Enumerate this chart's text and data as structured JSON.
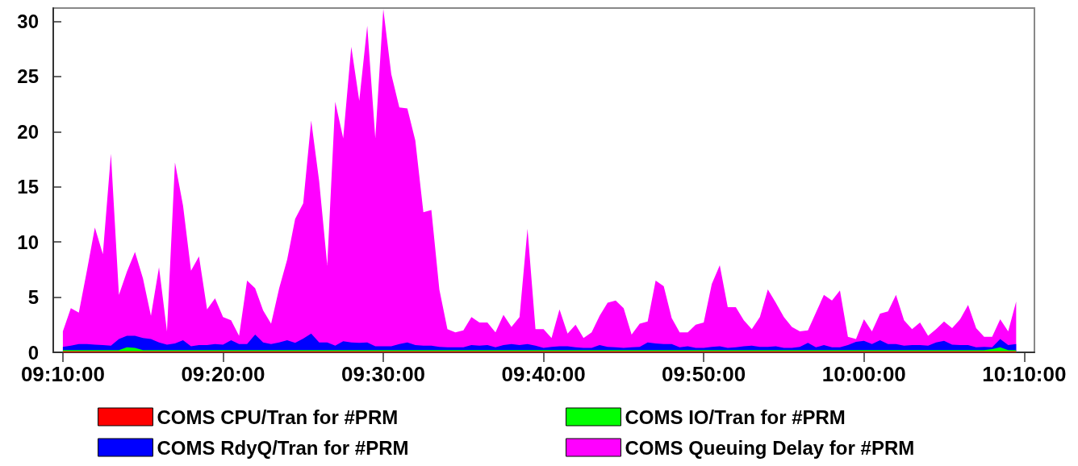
{
  "chart_data": {
    "type": "area",
    "stacked": true,
    "legend": "bottom",
    "grid": false,
    "xlim": [
      9.1567,
      10.1773
    ],
    "ylim": [
      0,
      31.2
    ],
    "xticks": [
      {
        "value": 9.1667,
        "label": "09:10:00"
      },
      {
        "value": 9.3333,
        "label": "09:20:00"
      },
      {
        "value": 9.5,
        "label": "09:30:00"
      },
      {
        "value": 9.6667,
        "label": "09:40:00"
      },
      {
        "value": 9.8333,
        "label": "09:50:00"
      },
      {
        "value": 10.0,
        "label": "10:00:00"
      },
      {
        "value": 10.1667,
        "label": "10:10:00"
      }
    ],
    "yticks": [
      0,
      5,
      10,
      15,
      20,
      25,
      30
    ],
    "x": [
      9.1667,
      9.175,
      9.1833,
      9.1917,
      9.2,
      9.2083,
      9.2167,
      9.225,
      9.2333,
      9.2417,
      9.25,
      9.2583,
      9.2667,
      9.275,
      9.2833,
      9.2917,
      9.3,
      9.3083,
      9.3167,
      9.325,
      9.3333,
      9.3417,
      9.35,
      9.3583,
      9.3667,
      9.375,
      9.3833,
      9.3917,
      9.4,
      9.4083,
      9.4167,
      9.425,
      9.4333,
      9.4417,
      9.45,
      9.4583,
      9.4667,
      9.475,
      9.4833,
      9.4917,
      9.5,
      9.5083,
      9.5167,
      9.525,
      9.5333,
      9.5417,
      9.55,
      9.5583,
      9.5667,
      9.575,
      9.5833,
      9.5917,
      9.6,
      9.6083,
      9.6167,
      9.625,
      9.6333,
      9.6417,
      9.65,
      9.6583,
      9.6667,
      9.675,
      9.6833,
      9.6917,
      9.7,
      9.7083,
      9.7167,
      9.725,
      9.7333,
      9.7417,
      9.75,
      9.7583,
      9.7667,
      9.775,
      9.7833,
      9.7917,
      9.8,
      9.8083,
      9.8167,
      9.825,
      9.8333,
      9.8417,
      9.85,
      9.8583,
      9.8667,
      9.875,
      9.8833,
      9.8917,
      9.9,
      9.9083,
      9.9167,
      9.925,
      9.9333,
      9.9417,
      9.95,
      9.9583,
      9.9667,
      9.975,
      9.9833,
      9.9917,
      10.0,
      10.0083,
      10.0167,
      10.025,
      10.0333,
      10.0417,
      10.05,
      10.0583,
      10.0667,
      10.075,
      10.0833,
      10.0917,
      10.1,
      10.1083,
      10.1167,
      10.125,
      10.1333,
      10.1417,
      10.15,
      10.1583
    ],
    "series": [
      {
        "name": "COMS CPU/Tran for #PRM",
        "color": "#ff0000",
        "values": [
          0.1,
          0.1,
          0.1,
          0.1,
          0.1,
          0.1,
          0.1,
          0.1,
          0.1,
          0.1,
          0.1,
          0.1,
          0.1,
          0.1,
          0.1,
          0.1,
          0.1,
          0.1,
          0.1,
          0.1,
          0.1,
          0.1,
          0.1,
          0.1,
          0.1,
          0.1,
          0.1,
          0.1,
          0.1,
          0.1,
          0.1,
          0.1,
          0.1,
          0.1,
          0.1,
          0.1,
          0.1,
          0.1,
          0.1,
          0.1,
          0.1,
          0.1,
          0.1,
          0.1,
          0.1,
          0.1,
          0.1,
          0.1,
          0.1,
          0.1,
          0.1,
          0.1,
          0.1,
          0.1,
          0.1,
          0.1,
          0.1,
          0.1,
          0.1,
          0.1,
          0.1,
          0.1,
          0.1,
          0.1,
          0.1,
          0.1,
          0.1,
          0.1,
          0.1,
          0.1,
          0.1,
          0.1,
          0.1,
          0.1,
          0.1,
          0.1,
          0.1,
          0.1,
          0.1,
          0.1,
          0.1,
          0.1,
          0.1,
          0.1,
          0.1,
          0.1,
          0.1,
          0.1,
          0.1,
          0.1,
          0.1,
          0.1,
          0.1,
          0.1,
          0.1,
          0.1,
          0.1,
          0.1,
          0.1,
          0.1,
          0.1,
          0.1,
          0.1,
          0.1,
          0.1,
          0.1,
          0.1,
          0.1,
          0.1,
          0.1,
          0.1,
          0.1,
          0.1,
          0.1,
          0.1,
          0.1,
          0.1,
          0.1,
          0.1,
          0.1
        ]
      },
      {
        "name": "COMS IO/Tran for #PRM",
        "color": "#00ff00",
        "values": [
          0.1,
          0.1,
          0.1,
          0.1,
          0.1,
          0.1,
          0.1,
          0.1,
          0.35,
          0.3,
          0.1,
          0.1,
          0.1,
          0.1,
          0.1,
          0.1,
          0.1,
          0.1,
          0.1,
          0.1,
          0.1,
          0.1,
          0.1,
          0.1,
          0.1,
          0.1,
          0.1,
          0.1,
          0.1,
          0.1,
          0.1,
          0.1,
          0.1,
          0.1,
          0.1,
          0.1,
          0.1,
          0.1,
          0.1,
          0.1,
          0.1,
          0.1,
          0.1,
          0.1,
          0.1,
          0.1,
          0.1,
          0.1,
          0.1,
          0.1,
          0.1,
          0.1,
          0.1,
          0.1,
          0.1,
          0.1,
          0.1,
          0.1,
          0.1,
          0.1,
          0.1,
          0.1,
          0.1,
          0.1,
          0.1,
          0.1,
          0.1,
          0.1,
          0.1,
          0.1,
          0.1,
          0.1,
          0.1,
          0.1,
          0.1,
          0.1,
          0.1,
          0.1,
          0.1,
          0.1,
          0.1,
          0.1,
          0.1,
          0.1,
          0.1,
          0.1,
          0.1,
          0.1,
          0.1,
          0.1,
          0.1,
          0.1,
          0.1,
          0.1,
          0.1,
          0.1,
          0.1,
          0.1,
          0.1,
          0.1,
          0.1,
          0.1,
          0.1,
          0.1,
          0.1,
          0.1,
          0.1,
          0.1,
          0.1,
          0.1,
          0.1,
          0.1,
          0.1,
          0.1,
          0.1,
          0.1,
          0.2,
          0.35,
          0.1,
          0.1
        ]
      },
      {
        "name": "COMS RdyQ/Tran for #PRM",
        "color": "#0000ff",
        "values": [
          0.3,
          0.4,
          0.55,
          0.55,
          0.5,
          0.45,
          0.4,
          1.0,
          1.05,
          1.1,
          1.1,
          1.0,
          0.7,
          0.5,
          0.6,
          0.9,
          0.35,
          0.45,
          0.45,
          0.55,
          0.5,
          0.9,
          0.55,
          0.55,
          1.4,
          0.7,
          0.55,
          0.7,
          0.9,
          0.65,
          1.05,
          1.5,
          0.7,
          0.7,
          0.4,
          0.8,
          0.7,
          0.65,
          0.7,
          0.35,
          0.35,
          0.35,
          0.55,
          0.7,
          0.45,
          0.4,
          0.4,
          0.3,
          0.25,
          0.25,
          0.25,
          0.45,
          0.4,
          0.45,
          0.25,
          0.45,
          0.55,
          0.45,
          0.55,
          0.4,
          0.2,
          0.3,
          0.35,
          0.35,
          0.25,
          0.2,
          0.2,
          0.45,
          0.3,
          0.25,
          0.2,
          0.25,
          0.3,
          0.7,
          0.6,
          0.55,
          0.55,
          0.25,
          0.35,
          0.2,
          0.2,
          0.3,
          0.35,
          0.2,
          0.25,
          0.35,
          0.4,
          0.3,
          0.3,
          0.35,
          0.2,
          0.2,
          0.3,
          0.65,
          0.25,
          0.45,
          0.25,
          0.25,
          0.45,
          0.75,
          0.85,
          0.55,
          0.9,
          0.55,
          0.55,
          0.4,
          0.45,
          0.45,
          0.4,
          0.7,
          0.85,
          0.5,
          0.45,
          0.45,
          0.25,
          0.3,
          0.15,
          0.75,
          0.45,
          0.55
        ]
      },
      {
        "name": "COMS Queuing Delay for #PRM",
        "color": "#ff00ff",
        "values": [
          1.4,
          3.4,
          2.85,
          6.65,
          10.6,
          8.25,
          17.4,
          4.0,
          5.8,
          7.6,
          5.4,
          2.1,
          6.8,
          1.2,
          16.4,
          12.2,
          6.85,
          8.05,
          3.25,
          4.15,
          2.5,
          1.8,
          0.75,
          5.75,
          4.2,
          2.9,
          1.85,
          4.9,
          7.3,
          11.25,
          12.25,
          19.3,
          14.6,
          7.0,
          22.1,
          18.4,
          26.8,
          21.95,
          28.7,
          18.85,
          30.55,
          24.65,
          21.45,
          21.2,
          18.55,
          12.1,
          12.3,
          5.2,
          1.65,
          1.35,
          1.55,
          2.55,
          2.1,
          2.05,
          1.35,
          2.75,
          1.55,
          2.55,
          10.45,
          1.5,
          1.7,
          0.8,
          3.35,
          1.15,
          2.05,
          0.9,
          1.4,
          2.65,
          4.0,
          4.25,
          3.6,
          1.15,
          2.1,
          1.9,
          5.7,
          5.25,
          2.35,
          1.35,
          1.25,
          2.1,
          2.3,
          5.7,
          7.35,
          3.7,
          3.65,
          2.35,
          1.5,
          2.7,
          5.2,
          3.95,
          2.8,
          1.9,
          1.4,
          1.15,
          3.15,
          4.55,
          4.25,
          5.15,
          0.75,
          0.25,
          1.95,
          1.15,
          2.4,
          2.95,
          4.45,
          2.3,
          1.45,
          2.05,
          0.9,
          1.2,
          1.75,
          1.5,
          2.35,
          3.65,
          1.75,
          0.9,
          0.95,
          1.8,
          1.25,
          3.85
        ]
      }
    ]
  }
}
